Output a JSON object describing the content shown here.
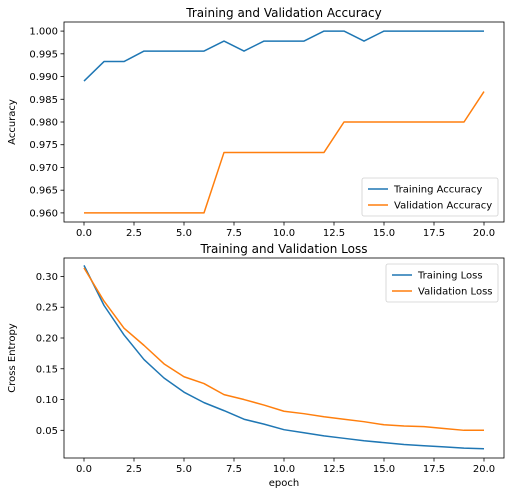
{
  "chart_data": [
    {
      "type": "line",
      "title": "Training and Validation Accuracy",
      "xlabel": "",
      "ylabel": "Accuracy",
      "xlim": [
        -1,
        21
      ],
      "ylim": [
        0.958,
        1.002
      ],
      "xticks": [
        "0.0",
        "2.5",
        "5.0",
        "7.5",
        "10.0",
        "12.5",
        "15.0",
        "17.5",
        "20.0"
      ],
      "yticks": [
        "0.960",
        "0.965",
        "0.970",
        "0.975",
        "0.980",
        "0.985",
        "0.990",
        "0.995",
        "1.000"
      ],
      "grid": false,
      "legend_loc": "lower right",
      "x": [
        0,
        1,
        2,
        3,
        4,
        5,
        6,
        7,
        8,
        9,
        10,
        11,
        12,
        13,
        14,
        15,
        16,
        17,
        18,
        19,
        20
      ],
      "series": [
        {
          "name": "Training Accuracy",
          "color": "#1f77b4",
          "values": [
            0.989,
            0.9933,
            0.9933,
            0.9956,
            0.9956,
            0.9956,
            0.9956,
            0.9978,
            0.9956,
            0.9978,
            0.9978,
            0.9978,
            1.0,
            1.0,
            0.9978,
            1.0,
            1.0,
            1.0,
            1.0,
            1.0,
            1.0
          ]
        },
        {
          "name": "Validation Accuracy",
          "color": "#ff7f0e",
          "values": [
            0.96,
            0.96,
            0.96,
            0.96,
            0.96,
            0.96,
            0.96,
            0.9733,
            0.9733,
            0.9733,
            0.9733,
            0.9733,
            0.9733,
            0.98,
            0.98,
            0.98,
            0.98,
            0.98,
            0.98,
            0.98,
            0.9867
          ]
        }
      ]
    },
    {
      "type": "line",
      "title": "Training and Validation Loss",
      "xlabel": "epoch",
      "ylabel": "Cross Entropy",
      "xlim": [
        -1,
        21
      ],
      "ylim": [
        0.005,
        0.33
      ],
      "xticks": [
        "0.0",
        "2.5",
        "5.0",
        "7.5",
        "10.0",
        "12.5",
        "15.0",
        "17.5",
        "20.0"
      ],
      "yticks": [
        "0.05",
        "0.10",
        "0.15",
        "0.20",
        "0.25",
        "0.30"
      ],
      "grid": false,
      "legend_loc": "upper right",
      "x": [
        0,
        1,
        2,
        3,
        4,
        5,
        6,
        7,
        8,
        9,
        10,
        11,
        12,
        13,
        14,
        15,
        16,
        17,
        18,
        19,
        20
      ],
      "series": [
        {
          "name": "Training Loss",
          "color": "#1f77b4",
          "values": [
            0.318,
            0.253,
            0.205,
            0.165,
            0.135,
            0.112,
            0.095,
            0.082,
            0.068,
            0.06,
            0.051,
            0.046,
            0.041,
            0.037,
            0.033,
            0.03,
            0.027,
            0.025,
            0.023,
            0.021,
            0.02
          ]
        },
        {
          "name": "Validation Loss",
          "color": "#ff7f0e",
          "values": [
            0.314,
            0.26,
            0.216,
            0.188,
            0.158,
            0.137,
            0.126,
            0.108,
            0.1,
            0.091,
            0.081,
            0.077,
            0.072,
            0.068,
            0.064,
            0.059,
            0.057,
            0.056,
            0.053,
            0.05,
            0.05
          ]
        }
      ]
    }
  ]
}
